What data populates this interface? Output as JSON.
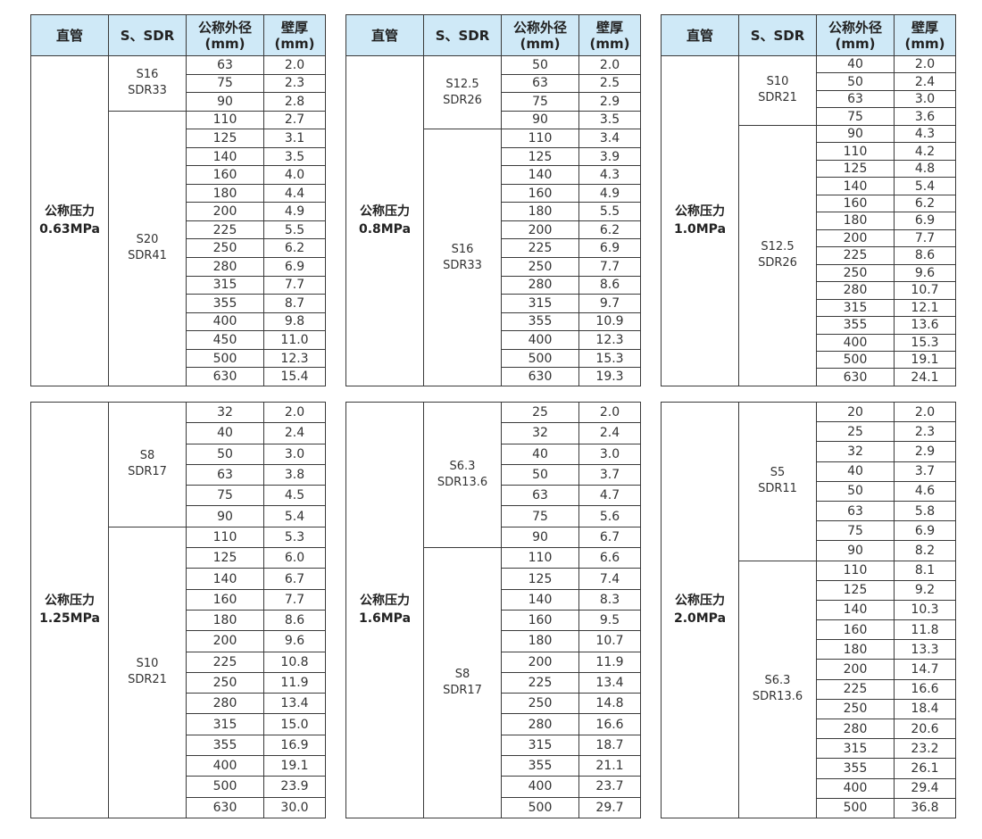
{
  "headers": {
    "col1": "直管",
    "col2": "S、SDR",
    "col3_line1": "公称外径",
    "col3_line2": "(mm)",
    "col4_line1": "壁厚",
    "col4_line2": "(mm)"
  },
  "header_bg": "#cfe9f7",
  "tables": [
    {
      "pressure_label": "公称压力",
      "pressure": "0.63MPa",
      "groups": [
        {
          "s": "S16",
          "sdr": "SDR33",
          "rows": [
            [
              "63",
              "2.0"
            ],
            [
              "75",
              "2.3"
            ],
            [
              "90",
              "2.8"
            ]
          ]
        },
        {
          "s": "S20",
          "sdr": "SDR41",
          "rows": [
            [
              "110",
              "2.7"
            ],
            [
              "125",
              "3.1"
            ],
            [
              "140",
              "3.5"
            ],
            [
              "160",
              "4.0"
            ],
            [
              "180",
              "4.4"
            ],
            [
              "200",
              "4.9"
            ],
            [
              "225",
              "5.5"
            ],
            [
              "250",
              "6.2"
            ],
            [
              "280",
              "6.9"
            ],
            [
              "315",
              "7.7"
            ],
            [
              "355",
              "8.7"
            ],
            [
              "400",
              "9.8"
            ],
            [
              "450",
              "11.0"
            ],
            [
              "500",
              "12.3"
            ],
            [
              "630",
              "15.4"
            ]
          ]
        }
      ]
    },
    {
      "pressure_label": "公称压力",
      "pressure": "0.8MPa",
      "groups": [
        {
          "s": "S12.5",
          "sdr": "SDR26",
          "rows": [
            [
              "50",
              "2.0"
            ],
            [
              "63",
              "2.5"
            ],
            [
              "75",
              "2.9"
            ],
            [
              "90",
              "3.5"
            ]
          ]
        },
        {
          "s": "S16",
          "sdr": "SDR33",
          "rows": [
            [
              "110",
              "3.4"
            ],
            [
              "125",
              "3.9"
            ],
            [
              "140",
              "4.3"
            ],
            [
              "160",
              "4.9"
            ],
            [
              "180",
              "5.5"
            ],
            [
              "200",
              "6.2"
            ],
            [
              "225",
              "6.9"
            ],
            [
              "250",
              "7.7"
            ],
            [
              "280",
              "8.6"
            ],
            [
              "315",
              "9.7"
            ],
            [
              "355",
              "10.9"
            ],
            [
              "400",
              "12.3"
            ],
            [
              "500",
              "15.3"
            ],
            [
              "630",
              "19.3"
            ]
          ]
        }
      ]
    },
    {
      "pressure_label": "公称压力",
      "pressure": "1.0MPa",
      "groups": [
        {
          "s": "S10",
          "sdr": "SDR21",
          "rows": [
            [
              "40",
              "2.0"
            ],
            [
              "50",
              "2.4"
            ],
            [
              "63",
              "3.0"
            ],
            [
              "75",
              "3.6"
            ]
          ]
        },
        {
          "s": "S12.5",
          "sdr": "SDR26",
          "rows": [
            [
              "90",
              "4.3"
            ],
            [
              "110",
              "4.2"
            ],
            [
              "125",
              "4.8"
            ],
            [
              "140",
              "5.4"
            ],
            [
              "160",
              "6.2"
            ],
            [
              "180",
              "6.9"
            ],
            [
              "200",
              "7.7"
            ],
            [
              "225",
              "8.6"
            ],
            [
              "250",
              "9.6"
            ],
            [
              "280",
              "10.7"
            ],
            [
              "315",
              "12.1"
            ],
            [
              "355",
              "13.6"
            ],
            [
              "400",
              "15.3"
            ],
            [
              "500",
              "19.1"
            ],
            [
              "630",
              "24.1"
            ]
          ]
        }
      ]
    },
    {
      "pressure_label": "公称压力",
      "pressure": "1.25MPa",
      "groups": [
        {
          "s": "S8",
          "sdr": "SDR17",
          "rows": [
            [
              "32",
              "2.0"
            ],
            [
              "40",
              "2.4"
            ],
            [
              "50",
              "3.0"
            ],
            [
              "63",
              "3.8"
            ],
            [
              "75",
              "4.5"
            ],
            [
              "90",
              "5.4"
            ]
          ]
        },
        {
          "s": "S10",
          "sdr": "SDR21",
          "rows": [
            [
              "110",
              "5.3"
            ],
            [
              "125",
              "6.0"
            ],
            [
              "140",
              "6.7"
            ],
            [
              "160",
              "7.7"
            ],
            [
              "180",
              "8.6"
            ],
            [
              "200",
              "9.6"
            ],
            [
              "225",
              "10.8"
            ],
            [
              "250",
              "11.9"
            ],
            [
              "280",
              "13.4"
            ],
            [
              "315",
              "15.0"
            ],
            [
              "355",
              "16.9"
            ],
            [
              "400",
              "19.1"
            ],
            [
              "500",
              "23.9"
            ],
            [
              "630",
              "30.0"
            ]
          ]
        }
      ]
    },
    {
      "pressure_label": "公称压力",
      "pressure": "1.6MPa",
      "groups": [
        {
          "s": "S6.3",
          "sdr": "SDR13.6",
          "rows": [
            [
              "25",
              "2.0"
            ],
            [
              "32",
              "2.4"
            ],
            [
              "40",
              "3.0"
            ],
            [
              "50",
              "3.7"
            ],
            [
              "63",
              "4.7"
            ],
            [
              "75",
              "5.6"
            ],
            [
              "90",
              "6.7"
            ]
          ]
        },
        {
          "s": "S8",
          "sdr": "SDR17",
          "rows": [
            [
              "110",
              "6.6"
            ],
            [
              "125",
              "7.4"
            ],
            [
              "140",
              "8.3"
            ],
            [
              "160",
              "9.5"
            ],
            [
              "180",
              "10.7"
            ],
            [
              "200",
              "11.9"
            ],
            [
              "225",
              "13.4"
            ],
            [
              "250",
              "14.8"
            ],
            [
              "280",
              "16.6"
            ],
            [
              "315",
              "18.7"
            ],
            [
              "355",
              "21.1"
            ],
            [
              "400",
              "23.7"
            ],
            [
              "500",
              "29.7"
            ]
          ]
        }
      ]
    },
    {
      "pressure_label": "公称压力",
      "pressure": "2.0MPa",
      "groups": [
        {
          "s": "S5",
          "sdr": "SDR11",
          "rows": [
            [
              "20",
              "2.0"
            ],
            [
              "25",
              "2.3"
            ],
            [
              "32",
              "2.9"
            ],
            [
              "40",
              "3.7"
            ],
            [
              "50",
              "4.6"
            ],
            [
              "63",
              "5.8"
            ],
            [
              "75",
              "6.9"
            ],
            [
              "90",
              "8.2"
            ]
          ]
        },
        {
          "s": "S6.3",
          "sdr": "SDR13.6",
          "rows": [
            [
              "110",
              "8.1"
            ],
            [
              "125",
              "9.2"
            ],
            [
              "140",
              "10.3"
            ],
            [
              "160",
              "11.8"
            ],
            [
              "180",
              "13.3"
            ],
            [
              "200",
              "14.7"
            ],
            [
              "225",
              "16.6"
            ],
            [
              "250",
              "18.4"
            ],
            [
              "280",
              "20.6"
            ],
            [
              "315",
              "23.2"
            ],
            [
              "355",
              "26.1"
            ],
            [
              "400",
              "29.4"
            ],
            [
              "500",
              "36.8"
            ]
          ]
        }
      ]
    }
  ]
}
